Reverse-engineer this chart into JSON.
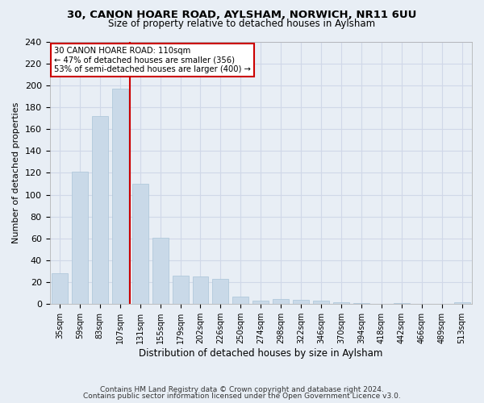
{
  "title_line1": "30, CANON HOARE ROAD, AYLSHAM, NORWICH, NR11 6UU",
  "title_line2": "Size of property relative to detached houses in Aylsham",
  "xlabel": "Distribution of detached houses by size in Aylsham",
  "ylabel": "Number of detached properties",
  "categories": [
    "35sqm",
    "59sqm",
    "83sqm",
    "107sqm",
    "131sqm",
    "155sqm",
    "179sqm",
    "202sqm",
    "226sqm",
    "250sqm",
    "274sqm",
    "298sqm",
    "322sqm",
    "346sqm",
    "370sqm",
    "394sqm",
    "418sqm",
    "442sqm",
    "466sqm",
    "489sqm",
    "513sqm"
  ],
  "values": [
    28,
    121,
    172,
    197,
    110,
    61,
    26,
    25,
    23,
    7,
    3,
    5,
    4,
    3,
    2,
    1,
    0,
    1,
    0,
    0,
    2
  ],
  "bar_color": "#c9d9e8",
  "bar_edge_color": "#aac4d8",
  "vline_x": 3.5,
  "vline_color": "#cc0000",
  "annotation_text": "30 CANON HOARE ROAD: 110sqm\n← 47% of detached houses are smaller (356)\n53% of semi-detached houses are larger (400) →",
  "annotation_box_color": "#ffffff",
  "annotation_box_edge": "#cc0000",
  "ylim": [
    0,
    240
  ],
  "yticks": [
    0,
    20,
    40,
    60,
    80,
    100,
    120,
    140,
    160,
    180,
    200,
    220,
    240
  ],
  "grid_color": "#d0d8e8",
  "background_color": "#e8eef5",
  "footer_line1": "Contains HM Land Registry data © Crown copyright and database right 2024.",
  "footer_line2": "Contains public sector information licensed under the Open Government Licence v3.0."
}
